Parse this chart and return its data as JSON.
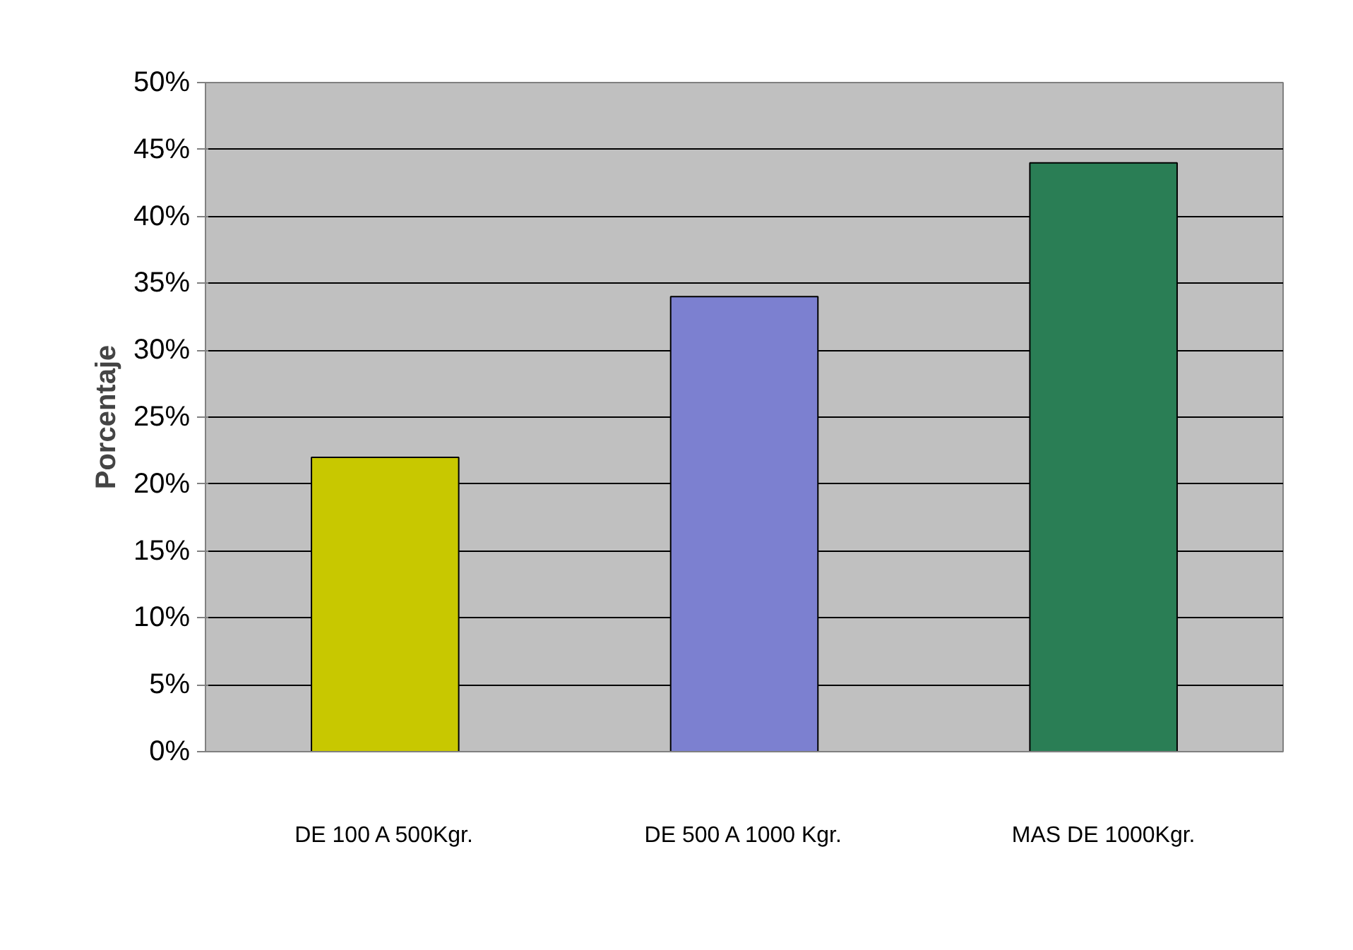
{
  "chart_data": {
    "type": "bar",
    "ylabel": "Porcentaje",
    "categories": [
      "DE 100 A 500Kgr.",
      "DE 500 A 1000 Kgr.",
      "MAS DE 1000Kgr."
    ],
    "values": [
      22,
      34,
      44
    ],
    "colors": [
      "#c8c800",
      "#7c80d0",
      "#2a7e55"
    ],
    "ylim": [
      0,
      50
    ],
    "yticks": [
      {
        "value": 0,
        "label": "0%"
      },
      {
        "value": 5,
        "label": "5%"
      },
      {
        "value": 10,
        "label": "10%"
      },
      {
        "value": 15,
        "label": "15%"
      },
      {
        "value": 20,
        "label": "20%"
      },
      {
        "value": 25,
        "label": "25%"
      },
      {
        "value": 30,
        "label": "30%"
      },
      {
        "value": 35,
        "label": "35%"
      },
      {
        "value": 40,
        "label": "40%"
      },
      {
        "value": 45,
        "label": "45%"
      },
      {
        "value": 50,
        "label": "50%"
      }
    ],
    "grid": "y"
  }
}
